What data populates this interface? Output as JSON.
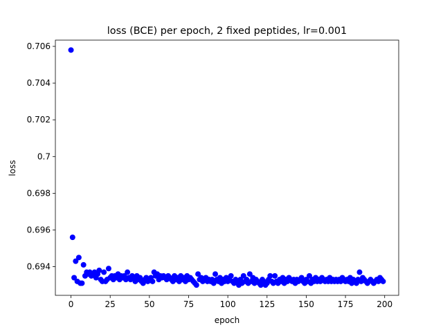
{
  "chart_data": {
    "type": "scatter",
    "title": "loss (BCE) per epoch, 2 fixed peptides, lr=0.001",
    "x_label": "epoch",
    "y_label": "loss",
    "color": "#0000ff",
    "x": [
      0,
      1,
      2,
      3,
      4,
      5,
      6,
      7,
      8,
      9,
      10,
      11,
      12,
      13,
      14,
      15,
      16,
      17,
      18,
      19,
      20,
      21,
      22,
      23,
      24,
      25,
      26,
      27,
      28,
      29,
      30,
      31,
      32,
      33,
      34,
      35,
      36,
      37,
      38,
      39,
      40,
      41,
      42,
      43,
      44,
      45,
      46,
      47,
      48,
      49,
      50,
      51,
      52,
      53,
      54,
      55,
      56,
      57,
      58,
      59,
      60,
      61,
      62,
      63,
      64,
      65,
      66,
      67,
      68,
      69,
      70,
      71,
      72,
      73,
      74,
      75,
      76,
      77,
      78,
      79,
      80,
      81,
      82,
      83,
      84,
      85,
      86,
      87,
      88,
      89,
      90,
      91,
      92,
      93,
      94,
      95,
      96,
      97,
      98,
      99,
      100,
      101,
      102,
      103,
      104,
      105,
      106,
      107,
      108,
      109,
      110,
      111,
      112,
      113,
      114,
      115,
      116,
      117,
      118,
      119,
      120,
      121,
      122,
      123,
      124,
      125,
      126,
      127,
      128,
      129,
      130,
      131,
      132,
      133,
      134,
      135,
      136,
      137,
      138,
      139,
      140,
      141,
      142,
      143,
      144,
      145,
      146,
      147,
      148,
      149,
      150,
      151,
      152,
      153,
      154,
      155,
      156,
      157,
      158,
      159,
      160,
      161,
      162,
      163,
      164,
      165,
      166,
      167,
      168,
      169,
      170,
      171,
      172,
      173,
      174,
      175,
      176,
      177,
      178,
      179,
      180,
      181,
      182,
      183,
      184,
      185,
      186,
      187,
      188,
      189,
      190,
      191,
      192,
      193,
      194,
      195,
      196,
      197,
      198,
      199
    ],
    "values": [
      0.7058,
      0.6956,
      0.6934,
      0.6943,
      0.6932,
      0.6945,
      0.6931,
      0.6931,
      0.6941,
      0.6935,
      0.6937,
      0.6936,
      0.6937,
      0.6935,
      0.6936,
      0.6937,
      0.6934,
      0.6936,
      0.6938,
      0.6933,
      0.6932,
      0.6937,
      0.6932,
      0.6933,
      0.6939,
      0.6934,
      0.6935,
      0.6933,
      0.6935,
      0.6934,
      0.6936,
      0.6933,
      0.6935,
      0.6934,
      0.6935,
      0.6933,
      0.6937,
      0.6934,
      0.6933,
      0.6935,
      0.6934,
      0.6932,
      0.6935,
      0.6933,
      0.6934,
      0.6932,
      0.6931,
      0.6933,
      0.6934,
      0.6932,
      0.6933,
      0.6934,
      0.6932,
      0.6937,
      0.6935,
      0.6936,
      0.6933,
      0.6935,
      0.6934,
      0.6935,
      0.6934,
      0.6933,
      0.6935,
      0.6934,
      0.6933,
      0.6932,
      0.6935,
      0.6933,
      0.6934,
      0.6932,
      0.6935,
      0.6933,
      0.6934,
      0.6932,
      0.6935,
      0.6933,
      0.6934,
      0.6933,
      0.6932,
      0.6931,
      0.693,
      0.6936,
      0.6933,
      0.6934,
      0.6932,
      0.6933,
      0.6934,
      0.6932,
      0.6933,
      0.6932,
      0.6933,
      0.6931,
      0.6936,
      0.6933,
      0.6932,
      0.6934,
      0.6931,
      0.6933,
      0.6932,
      0.6934,
      0.6932,
      0.6933,
      0.6935,
      0.6932,
      0.6931,
      0.6933,
      0.6932,
      0.693,
      0.6933,
      0.6931,
      0.6935,
      0.6932,
      0.6933,
      0.6931,
      0.6936,
      0.6932,
      0.6934,
      0.6931,
      0.6933,
      0.6932,
      0.6931,
      0.693,
      0.6933,
      0.6932,
      0.693,
      0.6931,
      0.6933,
      0.6935,
      0.6932,
      0.6931,
      0.6935,
      0.6932,
      0.6931,
      0.6933,
      0.6932,
      0.6934,
      0.6931,
      0.6933,
      0.6932,
      0.6934,
      0.6933,
      0.6932,
      0.6933,
      0.6931,
      0.6933,
      0.6932,
      0.6933,
      0.6934,
      0.6932,
      0.6931,
      0.6933,
      0.6932,
      0.6935,
      0.6931,
      0.6933,
      0.6932,
      0.6934,
      0.6932,
      0.6933,
      0.6932,
      0.6934,
      0.6933,
      0.6932,
      0.6933,
      0.6932,
      0.6934,
      0.6932,
      0.6933,
      0.6932,
      0.6933,
      0.6932,
      0.6933,
      0.6932,
      0.6934,
      0.6933,
      0.6932,
      0.6933,
      0.6932,
      0.6934,
      0.6931,
      0.6933,
      0.6932,
      0.6931,
      0.6933,
      0.6937,
      0.6932,
      0.6934,
      0.6933,
      0.6932,
      0.6931,
      0.6932,
      0.6933,
      0.6932,
      0.6931,
      0.6932,
      0.6933,
      0.6932,
      0.6934,
      0.6933,
      0.6932
    ],
    "xlim": [
      -9.95,
      208.95
    ],
    "ylim": [
      0.69244,
      0.70634
    ],
    "xticks": [
      0,
      25,
      50,
      75,
      100,
      125,
      150,
      175,
      200
    ],
    "yticks": [
      0.694,
      0.696,
      0.698,
      0.7,
      0.702,
      0.704,
      0.706
    ]
  }
}
